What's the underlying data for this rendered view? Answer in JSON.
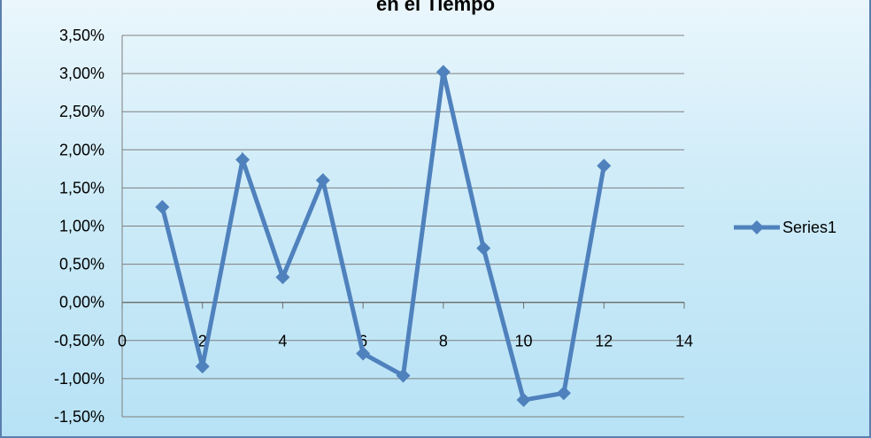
{
  "chart_data": {
    "type": "line",
    "title": "en el Tiempo",
    "xlabel": "",
    "ylabel": "",
    "xlim": [
      0,
      14
    ],
    "ylim": [
      -0.015,
      0.035
    ],
    "x_ticks": [
      0,
      2,
      4,
      6,
      8,
      10,
      12,
      14
    ],
    "x_tick_labels": [
      "0",
      "2",
      "4",
      "6",
      "8",
      "10",
      "12",
      "14"
    ],
    "y_ticks": [
      0.035,
      0.03,
      0.025,
      0.02,
      0.015,
      0.01,
      0.005,
      0.0,
      -0.005,
      -0.01,
      -0.015
    ],
    "y_tick_labels": [
      "3,50%",
      "3,00%",
      "2,50%",
      "2,00%",
      "1,50%",
      "1,00%",
      "0,50%",
      "0,00%",
      "-0,50%",
      "-1,00%",
      "-1,50%"
    ],
    "grid": true,
    "legend_position": "right",
    "series": [
      {
        "name": "Series1",
        "color": "#4f81bd",
        "marker": "diamond",
        "x": [
          1,
          2,
          3,
          4,
          5,
          6,
          7,
          8,
          9,
          10,
          11,
          12
        ],
        "y": [
          0.0125,
          -0.0084,
          0.0187,
          0.0033,
          0.016,
          -0.0067,
          -0.0096,
          0.0302,
          0.0071,
          -0.0128,
          -0.0119,
          0.0179
        ]
      }
    ]
  }
}
